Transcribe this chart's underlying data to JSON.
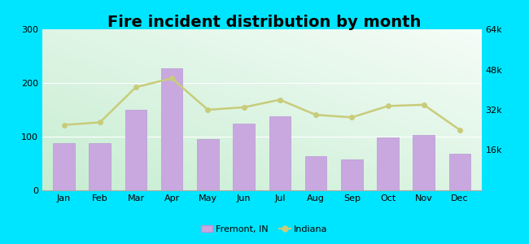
{
  "title": "Fire incident distribution by month",
  "months": [
    "Jan",
    "Feb",
    "Mar",
    "Apr",
    "May",
    "Jun",
    "Jul",
    "Aug",
    "Sep",
    "Oct",
    "Nov",
    "Dec"
  ],
  "fremont_values": [
    88,
    88,
    150,
    228,
    95,
    125,
    138,
    63,
    58,
    98,
    103,
    68
  ],
  "indiana_values": [
    26000,
    27000,
    41000,
    44500,
    32000,
    33000,
    36000,
    30000,
    29000,
    33500,
    34000,
    24000
  ],
  "bar_color": "#c9a8e0",
  "bar_edge_color": "#b898d4",
  "line_color": "#c8cc7a",
  "line_marker_color": "#c8cc7a",
  "outer_background": "#00e5ff",
  "title_fontsize": 14,
  "ylim_left": [
    0,
    300
  ],
  "ylim_right": [
    0,
    64000
  ],
  "yticks_left": [
    0,
    100,
    200,
    300
  ],
  "yticks_right": [
    16000,
    32000,
    48000,
    64000
  ],
  "legend_fremont": "Fremont, IN",
  "legend_indiana": "Indiana",
  "grid_color": "#d8e8d0"
}
